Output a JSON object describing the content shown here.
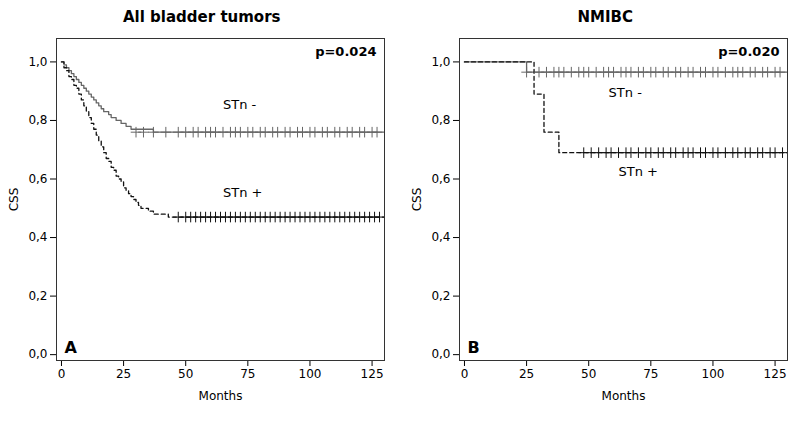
{
  "chart_data": [
    {
      "type": "line",
      "title": "All bladder tumors",
      "xlabel": "Months",
      "ylabel": "CSS",
      "xlim": [
        -2,
        130
      ],
      "ylim": [
        -0.02,
        1.08
      ],
      "xticks": [
        0,
        25,
        50,
        75,
        100,
        125
      ],
      "yticks": [
        {
          "value": 0.0,
          "label": "0,0"
        },
        {
          "value": 0.2,
          "label": "0,2"
        },
        {
          "value": 0.4,
          "label": "0,4"
        },
        {
          "value": 0.6,
          "label": "0,6"
        },
        {
          "value": 0.8,
          "label": "0,8"
        },
        {
          "value": 1.0,
          "label": "1,0"
        }
      ],
      "series": [
        {
          "name": "STn -",
          "type": "step",
          "line_style": "solid",
          "color": "#666666",
          "x": [
            0,
            1,
            2,
            3,
            4,
            5,
            6,
            7,
            8,
            9,
            10,
            11,
            12,
            13,
            14,
            15,
            16,
            17,
            18,
            19,
            20,
            22,
            24,
            26,
            28,
            30,
            33,
            37,
            42,
            130
          ],
          "values": [
            1.0,
            0.99,
            0.98,
            0.97,
            0.96,
            0.95,
            0.94,
            0.93,
            0.92,
            0.91,
            0.9,
            0.89,
            0.88,
            0.87,
            0.86,
            0.85,
            0.84,
            0.83,
            0.83,
            0.82,
            0.81,
            0.8,
            0.79,
            0.78,
            0.77,
            0.77,
            0.77,
            0.76,
            0.76,
            0.76
          ]
        },
        {
          "name": "STn +",
          "type": "step",
          "line_style": "dashed",
          "color": "#111111",
          "x": [
            0,
            1,
            2,
            3,
            4,
            5,
            6,
            7,
            8,
            9,
            10,
            11,
            12,
            13,
            14,
            15,
            16,
            17,
            18,
            19,
            20,
            21,
            22,
            23,
            24,
            25,
            26,
            27,
            28,
            29,
            30,
            31,
            32,
            33,
            35,
            37,
            39,
            41,
            43,
            45,
            47,
            130
          ],
          "values": [
            1.0,
            0.98,
            0.97,
            0.95,
            0.94,
            0.92,
            0.91,
            0.89,
            0.87,
            0.85,
            0.83,
            0.81,
            0.79,
            0.77,
            0.75,
            0.73,
            0.71,
            0.69,
            0.67,
            0.66,
            0.64,
            0.63,
            0.61,
            0.6,
            0.59,
            0.57,
            0.56,
            0.55,
            0.54,
            0.53,
            0.52,
            0.51,
            0.5,
            0.5,
            0.49,
            0.48,
            0.48,
            0.48,
            0.47,
            0.47,
            0.47,
            0.47
          ]
        },
        {
          "type": "scatter",
          "marker": "plus",
          "color": "#666666",
          "x": [
            30,
            33,
            37,
            42,
            47,
            50,
            53,
            55,
            58,
            60,
            62,
            65,
            68,
            70,
            72,
            75,
            77,
            80,
            82,
            85,
            87,
            90,
            92,
            95,
            97,
            100,
            102,
            105,
            107,
            110,
            112,
            115,
            117,
            120,
            122,
            125,
            127
          ],
          "values": [
            0.76,
            0.76,
            0.76,
            0.76,
            0.76,
            0.76,
            0.76,
            0.76,
            0.76,
            0.76,
            0.76,
            0.76,
            0.76,
            0.76,
            0.76,
            0.76,
            0.76,
            0.76,
            0.76,
            0.76,
            0.76,
            0.76,
            0.76,
            0.76,
            0.76,
            0.76,
            0.76,
            0.76,
            0.76,
            0.76,
            0.76,
            0.76,
            0.76,
            0.76,
            0.76,
            0.76,
            0.76
          ]
        },
        {
          "type": "scatter",
          "marker": "plus",
          "color": "#111111",
          "x": [
            47,
            50,
            52,
            54,
            56,
            58,
            60,
            62,
            64,
            66,
            68,
            70,
            72,
            74,
            76,
            78,
            80,
            82,
            84,
            86,
            88,
            90,
            92,
            94,
            96,
            98,
            100,
            102,
            104,
            106,
            108,
            110,
            112,
            114,
            116,
            118,
            120,
            122,
            124,
            126,
            128
          ],
          "values": [
            0.47,
            0.47,
            0.47,
            0.47,
            0.47,
            0.47,
            0.47,
            0.47,
            0.47,
            0.47,
            0.47,
            0.47,
            0.47,
            0.47,
            0.47,
            0.47,
            0.47,
            0.47,
            0.47,
            0.47,
            0.47,
            0.47,
            0.47,
            0.47,
            0.47,
            0.47,
            0.47,
            0.47,
            0.47,
            0.47,
            0.47,
            0.47,
            0.47,
            0.47,
            0.47,
            0.47,
            0.47,
            0.47,
            0.47,
            0.47,
            0.47
          ]
        }
      ],
      "annotations": [
        {
          "text": "p=0.024"
        },
        {
          "text": "A"
        },
        {
          "text": "STn -",
          "x": 65,
          "y": 0.84
        },
        {
          "text": "STn +",
          "x": 65,
          "y": 0.54
        }
      ]
    },
    {
      "type": "line",
      "title": "NMIBC",
      "xlabel": "Months",
      "ylabel": "CSS",
      "xlim": [
        -2,
        130
      ],
      "ylim": [
        -0.02,
        1.08
      ],
      "xticks": [
        0,
        25,
        50,
        75,
        100,
        125
      ],
      "yticks": [
        {
          "value": 0.0,
          "label": "0,0"
        },
        {
          "value": 0.2,
          "label": "0,2"
        },
        {
          "value": 0.4,
          "label": "0,4"
        },
        {
          "value": 0.6,
          "label": "0,6"
        },
        {
          "value": 0.8,
          "label": "0,8"
        },
        {
          "value": 1.0,
          "label": "1,0"
        }
      ],
      "series": [
        {
          "name": "STn -",
          "type": "step",
          "line_style": "solid",
          "color": "#666666",
          "x": [
            0,
            5,
            10,
            15,
            18,
            20,
            22,
            24,
            25,
            130
          ],
          "values": [
            1.0,
            1.0,
            1.0,
            1.0,
            1.0,
            1.0,
            1.0,
            1.0,
            0.965,
            0.965
          ]
        },
        {
          "name": "STn +",
          "type": "step",
          "line_style": "dashed",
          "color": "#111111",
          "x": [
            0,
            5,
            10,
            15,
            20,
            25,
            28,
            30,
            32,
            35,
            38,
            42,
            46,
            130
          ],
          "values": [
            1.0,
            1.0,
            1.0,
            1.0,
            1.0,
            1.0,
            0.89,
            0.89,
            0.76,
            0.76,
            0.69,
            0.69,
            0.69,
            0.69
          ]
        },
        {
          "type": "scatter",
          "marker": "plus",
          "color": "#666666",
          "x": [
            25,
            30,
            33,
            36,
            38,
            40,
            43,
            46,
            48,
            50,
            53,
            56,
            58,
            60,
            63,
            65,
            67,
            70,
            72,
            75,
            77,
            80,
            82,
            85,
            87,
            90,
            92,
            95,
            97,
            100,
            102,
            105,
            108,
            110,
            112,
            115,
            117,
            120,
            122,
            125,
            127
          ],
          "values": [
            0.965,
            0.965,
            0.965,
            0.965,
            0.965,
            0.965,
            0.965,
            0.965,
            0.965,
            0.965,
            0.965,
            0.965,
            0.965,
            0.965,
            0.965,
            0.965,
            0.965,
            0.965,
            0.965,
            0.965,
            0.965,
            0.965,
            0.965,
            0.965,
            0.965,
            0.965,
            0.965,
            0.965,
            0.965,
            0.965,
            0.965,
            0.965,
            0.965,
            0.965,
            0.965,
            0.965,
            0.965,
            0.965,
            0.965,
            0.965,
            0.965
          ]
        },
        {
          "type": "scatter",
          "marker": "plus",
          "color": "#111111",
          "x": [
            48,
            51,
            54,
            57,
            59,
            62,
            65,
            67,
            70,
            73,
            75,
            78,
            80,
            83,
            85,
            88,
            90,
            92,
            95,
            97,
            100,
            102,
            105,
            108,
            110,
            113,
            115,
            118,
            120,
            123,
            125,
            128
          ],
          "values": [
            0.69,
            0.69,
            0.69,
            0.69,
            0.69,
            0.69,
            0.69,
            0.69,
            0.69,
            0.69,
            0.69,
            0.69,
            0.69,
            0.69,
            0.69,
            0.69,
            0.69,
            0.69,
            0.69,
            0.69,
            0.69,
            0.69,
            0.69,
            0.69,
            0.69,
            0.69,
            0.69,
            0.69,
            0.69,
            0.69,
            0.69,
            0.69
          ]
        }
      ],
      "annotations": [
        {
          "text": "p=0.020"
        },
        {
          "text": "B"
        },
        {
          "text": "STn -",
          "x": 58,
          "y": 0.88
        },
        {
          "text": "STn +",
          "x": 62,
          "y": 0.61
        }
      ]
    }
  ]
}
